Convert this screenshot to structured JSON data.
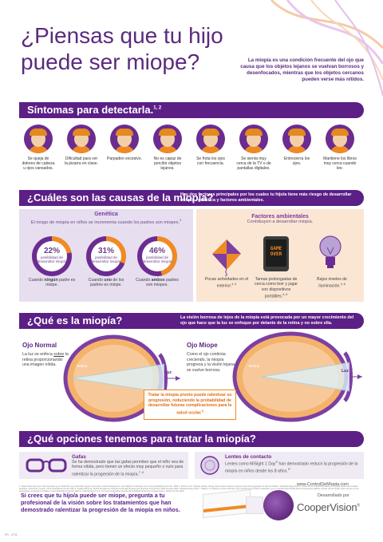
{
  "header": {
    "title": "¿Piensas que tu hijo puede ser miope?",
    "intro": "La miopía es una condición frecuente del ojo que causa que los objetos lejanos se vuelvan borrosos y desenfocados, mientras que los objetos cercanos pueden verse más nítidos."
  },
  "symptoms": {
    "heading": "Síntomas para detectarla.",
    "heading_sup": "1, 2",
    "items": [
      {
        "label": "Se queja de dolores de cabeza u ojos cansados."
      },
      {
        "label": "Dificultad para ver la pizarra en clase."
      },
      {
        "label": "Parpadeo excesivo."
      },
      {
        "label": "No es capaz de percibir objetos lejanos."
      },
      {
        "label": "Se frota los ojos con frecuencia."
      },
      {
        "label": "Se sienta muy cerca de la TV o de pantallas digitales."
      },
      {
        "label": "Entrecierra los ojos."
      },
      {
        "label": "Mantiene los libros muy cerca cuando lee."
      }
    ]
  },
  "causes": {
    "heading": "¿Cuáles son las causas de la miopía?",
    "note": "Hay dos factores principales por los cuales tu hijo/a tiene más riesgo de desarrollar miopía - genética y factores ambientales.",
    "genetics": {
      "title": "Genética",
      "subtitle": "El riesgo de miopía en niños se incrementa cuando los padres son miopes.",
      "subtitle_sup": "3",
      "donuts": [
        {
          "value": 22,
          "pct": "22%",
          "label": "posibilidad de desarrollar miopía",
          "caption_pre": "Cuando ",
          "caption_bold": "ningún",
          "caption_post": " padre es miope."
        },
        {
          "value": 31,
          "pct": "31%",
          "label": "posibilidad de desarrollar miopía",
          "caption_pre": "Cuando ",
          "caption_bold": "uno",
          "caption_post": " de los padres es miope."
        },
        {
          "value": 46,
          "pct": "46%",
          "label": "posibilidad de desarrollar miopía",
          "caption_pre": "Cuando ",
          "caption_bold": "ambos",
          "caption_post": " padres son miopes."
        }
      ]
    },
    "environment": {
      "title": "Factores ambientales",
      "subtitle": "Contribuyen a desarrollar miopía.",
      "game_over": "GAME OVER",
      "items": [
        {
          "label": "Pocas actividades en el exterior.",
          "sup": "4, 5"
        },
        {
          "label": "Tareas prolongadas de cerca como leer y jugar con dispositivos portátiles.",
          "sup": "4, 6"
        },
        {
          "label": "Bajos niveles de iluminación.",
          "sup": "4, 6"
        }
      ]
    }
  },
  "what": {
    "heading": "¿Qué es la miopía?",
    "note": "La visión borrosa de lejos de la miopía está provocada por un mayor crecimiento del ojo que hace que la luz se enfoque por delante de la retina y no sobre ella.",
    "normal": {
      "title": "Ojo Normal",
      "text_pre": "La luz se enfoca ",
      "text_link": "sobre",
      "text_post": " la retina proporcionando una imagen nítida.",
      "retina": "Retina",
      "luz": "Luz"
    },
    "myopic": {
      "title": "Ojo Miope",
      "text": "Como el ojo continúa creciendo, la miopía progresa y la visión lejana se vuelve borrosa.",
      "retina": "Retina",
      "luz": "Luz"
    },
    "callout": "Tratar la miopía pronto puede ralentizar su progresión, reduciendo la probabilidad de desarrollar futuras complicaciones para la salud ocular.",
    "callout_sup": "6"
  },
  "options": {
    "heading": "¿Qué opciones tenemos para tratar la miopía?",
    "glasses": {
      "title": "Gafas",
      "text": "Se ha demostrado que las gafas permiten que el niño vea de forma nítida, pero tienen un efecto muy pequeño o nulo para ralentizar la progresión de la miopía.",
      "sup": "7, 8"
    },
    "lenses": {
      "title": "Lentes de contacto",
      "text": "Lentes como MiSight 1 Day",
      "text2": " han demostrado reducir la progresión de la miopía en niños desde los 8 años.",
      "sup": "9*"
    }
  },
  "footer": {
    "refs": "1. https://www.aoa.org 2. http://eyecare.org 3. Mutti DO et al. Parental myopia, near work, school achievement, and children's refractive error. Invest Ophthalmol Vis Sci. 2002 4. Wu PC et al. Outdoor activity during class recess reduces myopia onset and progression in school children. Ophthalmology 2013 5. Jones LA et al. Parental history of myopia, sports and outdoor activities, and future myopia. Invest Ophthalmol Vis Sci 2007 6. Holden BA et al. Global Prevalence of Myopia and High Myopia and Temporal Trends from 2000 through 2050. Ophthalmology 2016 7. Walline JJ. Myopia Control: A Review. Eye Contact Lens 2016 8. Gwiazda J et al. A randomized clinical trial of progressive addition lenses versus single vision lenses on the progression of myopia in children. Invest Ophthalmol Vis Sci 2003 9. Chamberlain P et al. A 3-year randomized clinical trial of MiSight lenses for myopia control. Optom Vis Sci 2019.",
    "question": "Si crees que tu hijo/a puede ser miope, pregunta a tu profesional de la visión sobre los tratamientos que han demostrado ralentizar la progresión de la miopía en niños.",
    "website": "www.ControlDeMiopia.com",
    "developed": "Desarrollado por",
    "brand": "CooperVision",
    "code": "ES - 4711"
  },
  "colors": {
    "purple": "#5b1f86",
    "orange": "#f08a24",
    "lilac": "#e7def0",
    "peach": "#fbe6d4"
  }
}
